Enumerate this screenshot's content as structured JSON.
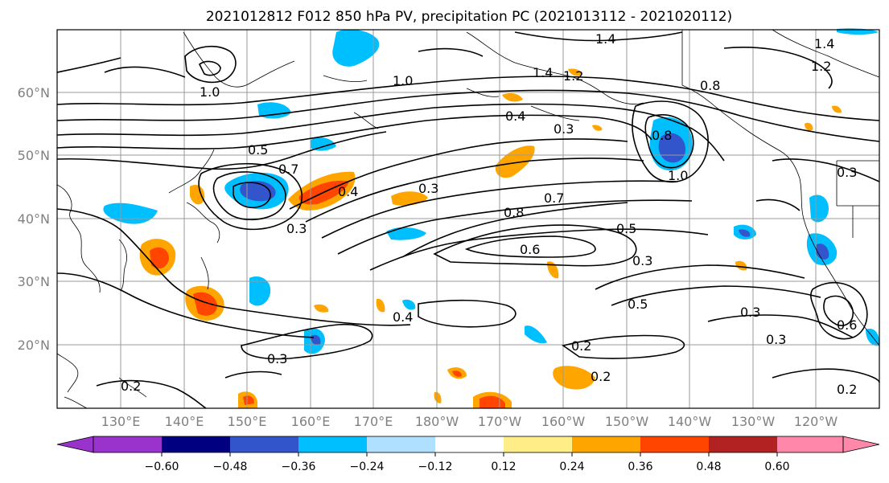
{
  "title": "2021012812 F012 850 hPa PV, precipitation PC (2021013112 - 2021020112)",
  "lat_labels": [
    "60°N",
    "50°N",
    "40°N",
    "30°N",
    "20°N"
  ],
  "lon_labels": [
    "130°E",
    "140°E",
    "150°E",
    "160°E",
    "170°E",
    "180°W",
    "170°W",
    "160°W",
    "150°W",
    "140°W",
    "130°W",
    "120°W"
  ],
  "colorbar": {
    "tick_labels": [
      "−0.60",
      "−0.48",
      "−0.36",
      "−0.24",
      "−0.12",
      "0.12",
      "0.24",
      "0.36",
      "0.48",
      "0.60"
    ],
    "colors": [
      "#9933cc",
      "#000080",
      "#3355cc",
      "#00bfff",
      "#b0e0ff",
      "#ffffff",
      "#ffee88",
      "#ffa500",
      "#ff4500",
      "#b22222",
      "#ff88aa"
    ]
  },
  "contour_labels": [
    "1.4",
    "1.4",
    "1.2",
    "1.0",
    "1.0",
    "1.4",
    "1.2",
    "0.5",
    "0.4",
    "0.3",
    "0.7",
    "0.7",
    "0.8",
    "0.8",
    "0.6",
    "0.5",
    "0.3",
    "0.5",
    "0.4",
    "0.3",
    "0.3",
    "0.3",
    "0.3",
    "0.2",
    "0.2",
    "0.2",
    "0.6",
    "0.2",
    "1.0",
    "0.8",
    "0.3",
    "0.4",
    "0.3"
  ]
}
